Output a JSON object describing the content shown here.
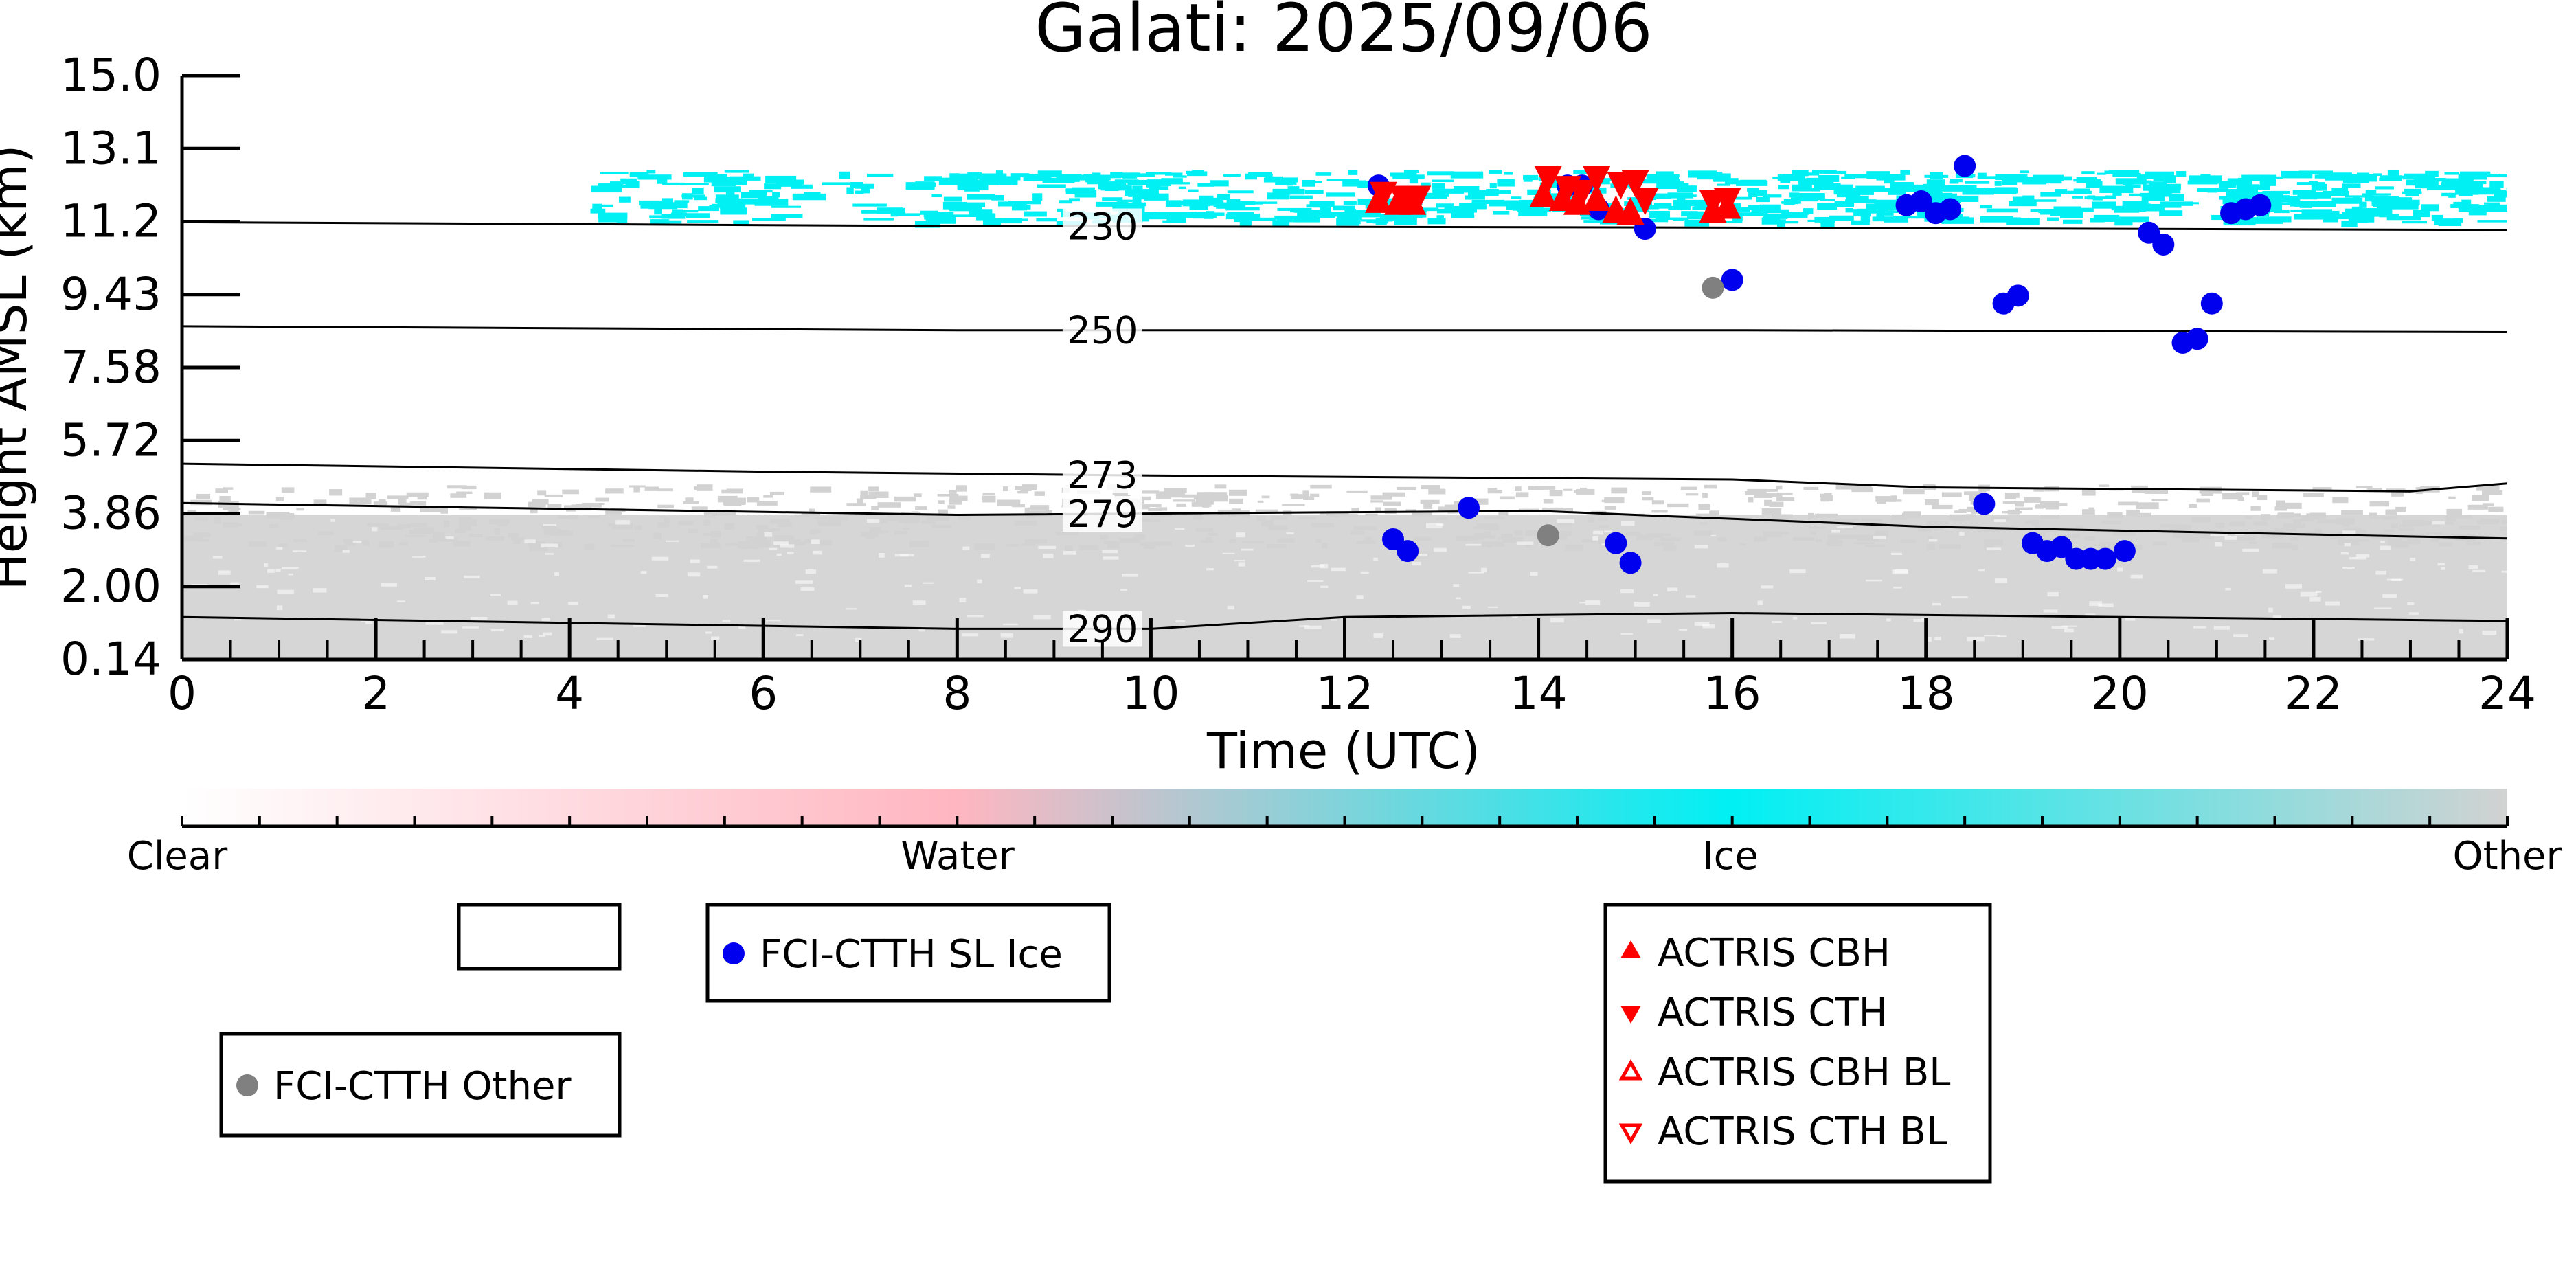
{
  "colors": {
    "ice": "#00f0f4",
    "water": "#ffb6c1",
    "other": "#d2d2d2",
    "sl_ice": "#0000ee",
    "fci_other": "#808080",
    "actris": "#ff0000"
  },
  "chart_data": {
    "type": "scatter",
    "title": "Galati: 2025/09/06",
    "xlabel": "Time (UTC)",
    "ylabel": "Height AMSL (km)",
    "xlim": [
      0,
      24
    ],
    "ylim": [
      0.14,
      15.0
    ],
    "x_ticks": [
      "0",
      "2",
      "4",
      "6",
      "8",
      "10",
      "12",
      "14",
      "16",
      "18",
      "20",
      "22",
      "24"
    ],
    "y_ticks": [
      "0.14",
      "2.00",
      "3.86",
      "5.72",
      "7.58",
      "9.43",
      "11.2",
      "13.1",
      "15.0"
    ],
    "colorbar": {
      "labels": [
        "Clear",
        "Water",
        "Ice",
        "Other"
      ]
    },
    "contours": [
      {
        "label": "230",
        "label_x": 9.5,
        "points": [
          [
            0,
            11.27
          ],
          [
            8,
            11.17
          ],
          [
            16,
            11.13
          ],
          [
            24,
            11.07
          ]
        ]
      },
      {
        "label": "250",
        "label_x": 9.5,
        "points": [
          [
            0,
            8.62
          ],
          [
            8,
            8.52
          ],
          [
            16,
            8.52
          ],
          [
            24,
            8.47
          ]
        ]
      },
      {
        "label": "273",
        "label_x": 9.5,
        "points": [
          [
            0,
            5.12
          ],
          [
            6,
            4.92
          ],
          [
            10,
            4.82
          ],
          [
            16,
            4.72
          ],
          [
            18,
            4.52
          ],
          [
            23,
            4.42
          ],
          [
            24,
            4.62
          ]
        ]
      },
      {
        "label": "279",
        "label_x": 9.5,
        "points": [
          [
            0,
            4.12
          ],
          [
            8,
            3.82
          ],
          [
            14,
            3.92
          ],
          [
            18,
            3.52
          ],
          [
            24,
            3.22
          ]
        ]
      },
      {
        "label": "290",
        "label_x": 9.5,
        "points": [
          [
            0,
            1.22
          ],
          [
            8,
            0.92
          ],
          [
            10,
            0.92
          ],
          [
            12,
            1.22
          ],
          [
            16,
            1.32
          ],
          [
            20,
            1.22
          ],
          [
            24,
            1.12
          ]
        ]
      }
    ],
    "regions": [
      {
        "class": "Ice",
        "x0": 4.2,
        "x1": 24,
        "y0": 11.3,
        "y1": 12.6
      },
      {
        "class": "Other",
        "x0": 0,
        "x1": 24,
        "y0": 0.14,
        "y1": 4.6
      }
    ],
    "series": [
      {
        "name": "FCI-CTTH SL Ice",
        "marker": "circle",
        "color": "#0000ee",
        "points": [
          [
            12.35,
            12.2
          ],
          [
            12.5,
            3.2
          ],
          [
            12.65,
            2.9
          ],
          [
            13.28,
            4.0
          ],
          [
            14.3,
            12.2
          ],
          [
            14.45,
            12.2
          ],
          [
            14.62,
            11.6
          ],
          [
            14.8,
            3.1
          ],
          [
            14.95,
            2.6
          ],
          [
            15.1,
            11.1
          ],
          [
            16.0,
            9.8
          ],
          [
            17.8,
            11.7
          ],
          [
            17.95,
            11.8
          ],
          [
            18.1,
            11.5
          ],
          [
            18.25,
            11.6
          ],
          [
            18.4,
            12.7
          ],
          [
            18.6,
            4.1
          ],
          [
            18.8,
            9.2
          ],
          [
            18.95,
            9.4
          ],
          [
            19.1,
            3.1
          ],
          [
            19.25,
            2.9
          ],
          [
            19.4,
            3.0
          ],
          [
            19.55,
            2.7
          ],
          [
            19.7,
            2.7
          ],
          [
            19.85,
            2.7
          ],
          [
            20.05,
            2.9
          ],
          [
            20.3,
            11.0
          ],
          [
            20.45,
            10.7
          ],
          [
            20.65,
            8.2
          ],
          [
            20.8,
            8.3
          ],
          [
            20.95,
            9.2
          ],
          [
            21.15,
            11.5
          ],
          [
            21.3,
            11.6
          ],
          [
            21.45,
            11.7
          ]
        ]
      },
      {
        "name": "FCI-CTTH Other",
        "marker": "circle",
        "color": "#808080",
        "points": [
          [
            14.1,
            3.3
          ],
          [
            15.8,
            9.6
          ]
        ]
      },
      {
        "name": "ACTRIS CBH",
        "marker": "triangle-up",
        "color": "#ff0000",
        "points": [
          [
            12.35,
            11.75
          ],
          [
            12.55,
            11.7
          ],
          [
            12.7,
            11.7
          ],
          [
            14.05,
            11.9
          ],
          [
            14.25,
            11.8
          ],
          [
            14.4,
            11.7
          ],
          [
            14.6,
            11.8
          ],
          [
            14.8,
            11.5
          ],
          [
            14.95,
            11.45
          ],
          [
            15.8,
            11.5
          ],
          [
            15.95,
            11.6
          ]
        ]
      },
      {
        "name": "ACTRIS CTH",
        "marker": "triangle-down",
        "color": "#ff0000",
        "points": [
          [
            12.4,
            12.05
          ],
          [
            12.6,
            11.95
          ],
          [
            12.75,
            11.95
          ],
          [
            14.1,
            12.45
          ],
          [
            14.3,
            12.2
          ],
          [
            14.45,
            12.1
          ],
          [
            14.6,
            12.45
          ],
          [
            14.85,
            12.3
          ],
          [
            15.0,
            12.35
          ],
          [
            15.1,
            11.9
          ],
          [
            15.8,
            11.85
          ],
          [
            15.95,
            11.9
          ]
        ]
      },
      {
        "name": "ACTRIS CBH BL",
        "marker": "triangle-up-open",
        "color": "#ff0000",
        "points": []
      },
      {
        "name": "ACTRIS CTH BL",
        "marker": "triangle-down-open",
        "color": "#ff0000",
        "points": []
      }
    ],
    "legends": [
      {
        "entries": []
      },
      {
        "entries": [
          "FCI-CTTH SL Ice"
        ]
      },
      {
        "entries": [
          "FCI-CTTH Other"
        ]
      },
      {
        "entries": [
          "ACTRIS CBH",
          "ACTRIS CTH",
          "ACTRIS CBH BL",
          "ACTRIS CTH BL"
        ]
      }
    ]
  }
}
